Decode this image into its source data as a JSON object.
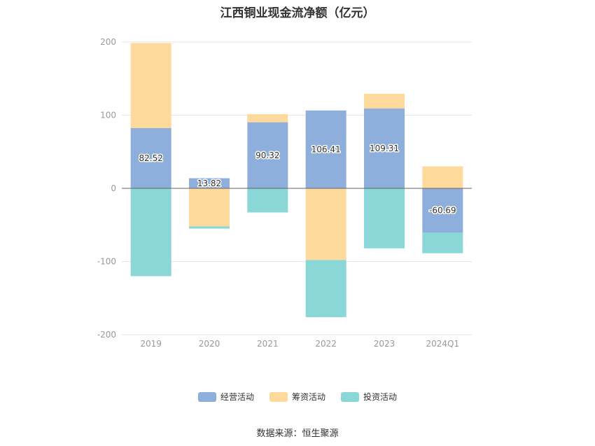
{
  "chart_data": {
    "type": "bar",
    "stacked": true,
    "title": "江西铜业现金流净额（亿元）",
    "xlabel": "",
    "ylabel": "",
    "categories": [
      "2019",
      "2020",
      "2021",
      "2022",
      "2023",
      "2024Q1"
    ],
    "ylim": [
      -200,
      200
    ],
    "yticks": [
      200,
      100,
      0,
      -100,
      -200
    ],
    "grid": true,
    "legend_position": "bottom",
    "series": [
      {
        "name": "经营活动",
        "color": "#8eaedc",
        "values": [
          82.52,
          13.82,
          90.32,
          106.41,
          109.31,
          -60.69
        ]
      },
      {
        "name": "筹资活动",
        "color": "#fdd99b",
        "values": [
          116,
          -52,
          11,
          -98,
          20,
          30
        ]
      },
      {
        "name": "投资活动",
        "color": "#89d7d7",
        "values": [
          -120,
          -3,
          -33,
          -78,
          -82,
          -28
        ]
      }
    ],
    "data_labels": [
      "82.52",
      "13.82",
      "90.32",
      "106.41",
      "109.31",
      "-60.69"
    ],
    "source": "数据来源：恒生聚源"
  }
}
